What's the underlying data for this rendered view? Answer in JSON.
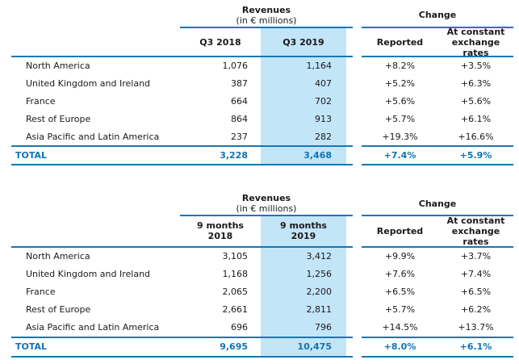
{
  "colors": {
    "rule_blue": "#1478b6",
    "total_text_blue": "#0f73b4",
    "highlight_blue": "#c3e5f8",
    "body_text": "#1a1a1a"
  },
  "tables": [
    {
      "revenues_title": "Revenues",
      "revenues_subtitle": "(in € millions)",
      "change_title": "Change",
      "col_2018": "Q3 2018",
      "col_2019": "Q3 2019",
      "col_reported": "Reported",
      "col_constant": "At constant\nexchange\nrates",
      "rows": [
        {
          "label": "North America",
          "y2018": "1,076",
          "y2019": "1,164",
          "reported": "+8.2%",
          "constant": "+3.5%"
        },
        {
          "label": "United Kingdom and Ireland",
          "y2018": "387",
          "y2019": "407",
          "reported": "+5.2%",
          "constant": "+6.3%"
        },
        {
          "label": "France",
          "y2018": "664",
          "y2019": "702",
          "reported": "+5.6%",
          "constant": "+5.6%"
        },
        {
          "label": "Rest of Europe",
          "y2018": "864",
          "y2019": "913",
          "reported": "+5.7%",
          "constant": "+6.1%"
        },
        {
          "label": "Asia Pacific and Latin America",
          "y2018": "237",
          "y2019": "282",
          "reported": "+19.3%",
          "constant": "+16.6%"
        }
      ],
      "total": {
        "label": "TOTAL",
        "y2018": "3,228",
        "y2019": "3,468",
        "reported": "+7.4%",
        "constant": "+5.9%"
      }
    },
    {
      "revenues_title": "Revenues",
      "revenues_subtitle": "(in € millions)",
      "change_title": "Change",
      "col_2018": "9 months\n2018",
      "col_2019": "9 months\n2019",
      "col_reported": "Reported",
      "col_constant": "At constant\nexchange\nrates",
      "rows": [
        {
          "label": "North America",
          "y2018": "3,105",
          "y2019": "3,412",
          "reported": "+9.9%",
          "constant": "+3.7%"
        },
        {
          "label": "United Kingdom and Ireland",
          "y2018": "1,168",
          "y2019": "1,256",
          "reported": "+7.6%",
          "constant": "+7.4%"
        },
        {
          "label": "France",
          "y2018": "2,065",
          "y2019": "2,200",
          "reported": "+6.5%",
          "constant": "+6.5%"
        },
        {
          "label": "Rest of Europe",
          "y2018": "2,661",
          "y2019": "2,811",
          "reported": "+5.7%",
          "constant": "+6.2%"
        },
        {
          "label": "Asia Pacific and Latin America",
          "y2018": "696",
          "y2019": "796",
          "reported": "+14.5%",
          "constant": "+13.7%"
        }
      ],
      "total": {
        "label": "TOTAL",
        "y2018": "9,695",
        "y2019": "10,475",
        "reported": "+8.0%",
        "constant": "+6.1%"
      }
    }
  ]
}
